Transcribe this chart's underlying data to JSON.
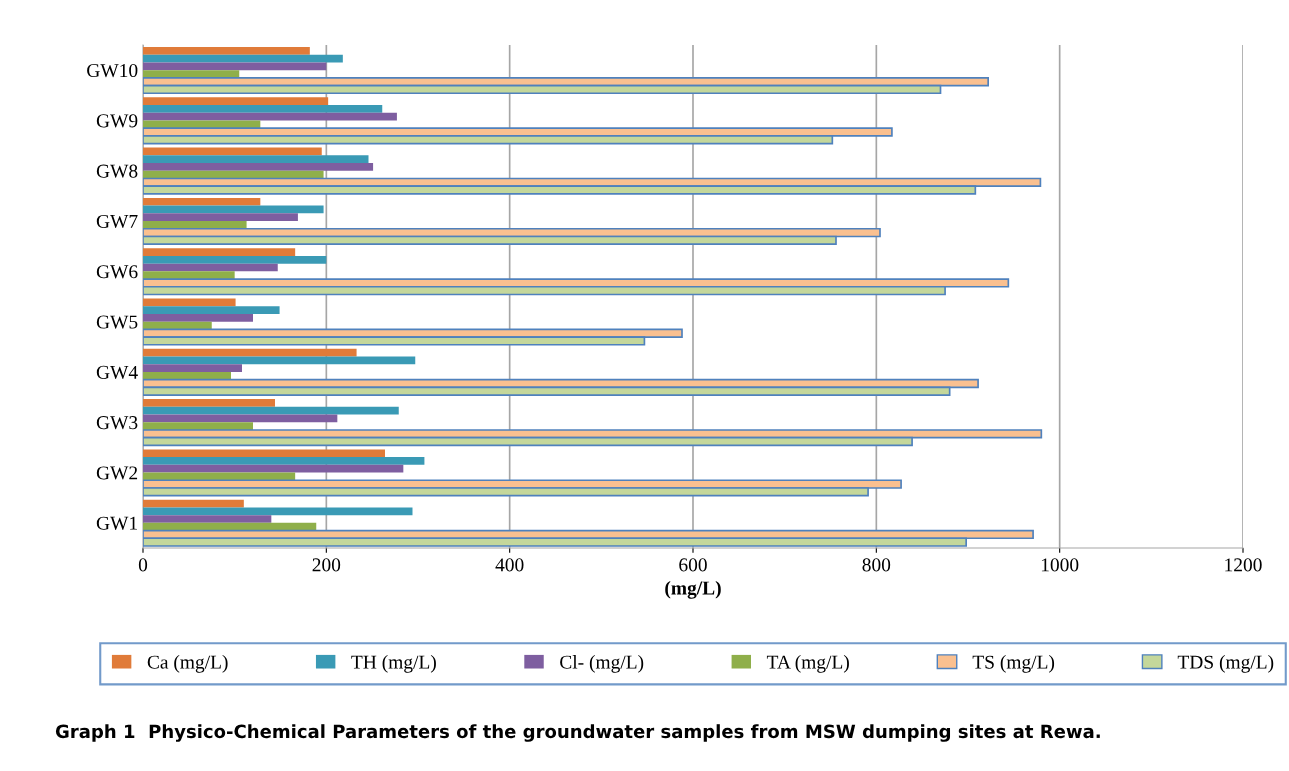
{
  "chart_data": {
    "type": "bar",
    "orientation": "horizontal",
    "categories": [
      "GW10",
      "GW9",
      "GW8",
      "GW7",
      "GW6",
      "GW5",
      "GW4",
      "GW3",
      "GW2",
      "GW1"
    ],
    "series": [
      {
        "name": "Ca (mg/L)",
        "color": "#e07b39",
        "values": [
          182,
          202,
          195,
          128,
          166,
          101,
          233,
          144,
          264,
          110
        ]
      },
      {
        "name": "TH (mg/L)",
        "color": "#3a9ab5",
        "values": [
          218,
          261,
          246,
          197,
          200,
          149,
          297,
          279,
          307,
          294
        ]
      },
      {
        "name": "Cl- (mg/L)",
        "color": "#7e5ea0",
        "values": [
          200,
          277,
          251,
          169,
          147,
          120,
          108,
          212,
          284,
          140
        ]
      },
      {
        "name": "TA (mg/L)",
        "color": "#8faf4a",
        "values": [
          105,
          128,
          197,
          113,
          100,
          75,
          96,
          120,
          166,
          189
        ]
      },
      {
        "name": "TS (mg/L)",
        "color": "#fac090",
        "values": [
          922,
          817,
          979,
          804,
          944,
          588,
          911,
          980,
          827,
          971
        ]
      },
      {
        "name": "TDS (mg/L)",
        "color": "#c4d79b",
        "values": [
          870,
          752,
          908,
          756,
          875,
          547,
          880,
          839,
          791,
          898
        ]
      }
    ],
    "xlim": [
      0,
      1200
    ],
    "xticks": [
      0,
      200,
      400,
      600,
      800,
      1000,
      1200
    ],
    "xlabel": "(mg/L)",
    "grid": "x",
    "legend": "bottom",
    "annotations": [
      "Graph 1  Physico-Chemical Parameters of the groundwater samples from MSW dumping sites at Rewa."
    ]
  }
}
